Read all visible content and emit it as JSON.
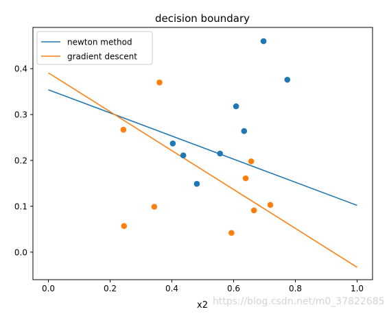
{
  "chart_data": {
    "type": "scatter",
    "title": "decision boundary",
    "xlabel": "x2",
    "ylabel": "",
    "xlim": [
      -0.05,
      1.05
    ],
    "ylim": [
      -0.06,
      0.49
    ],
    "xticks": [
      0.0,
      0.2,
      0.4,
      0.6,
      0.8,
      1.0
    ],
    "xtick_labels": [
      "0.0",
      "0.2",
      "0.4",
      "0.6",
      "0.8",
      "1.0"
    ],
    "yticks": [
      0.0,
      0.1,
      0.2,
      0.3,
      0.4
    ],
    "ytick_labels": [
      "0.0",
      "0.1",
      "0.2",
      "0.3",
      "0.4"
    ],
    "grid": false,
    "legend_position": "upper-left",
    "lines": [
      {
        "name": "newton method",
        "color": "#1f77b4",
        "x": [
          0.0,
          1.0
        ],
        "y": [
          0.354,
          0.102
        ]
      },
      {
        "name": "gradient descent",
        "color": "#ff7f0e",
        "x": [
          0.0,
          1.0
        ],
        "y": [
          0.391,
          -0.033
        ]
      }
    ],
    "points": [
      {
        "color": "#1f77b4",
        "x": [
          0.697,
          0.774,
          0.608,
          0.634,
          0.403,
          0.437,
          0.556,
          0.481
        ],
        "y": [
          0.46,
          0.376,
          0.318,
          0.264,
          0.237,
          0.211,
          0.215,
          0.149
        ]
      },
      {
        "color": "#ff7f0e",
        "x": [
          0.36,
          0.243,
          0.657,
          0.639,
          0.343,
          0.719,
          0.666,
          0.245,
          0.593
        ],
        "y": [
          0.37,
          0.267,
          0.198,
          0.161,
          0.099,
          0.103,
          0.091,
          0.057,
          0.042
        ]
      }
    ]
  },
  "watermark": "https://blog.csdn.net/m0_37822685"
}
